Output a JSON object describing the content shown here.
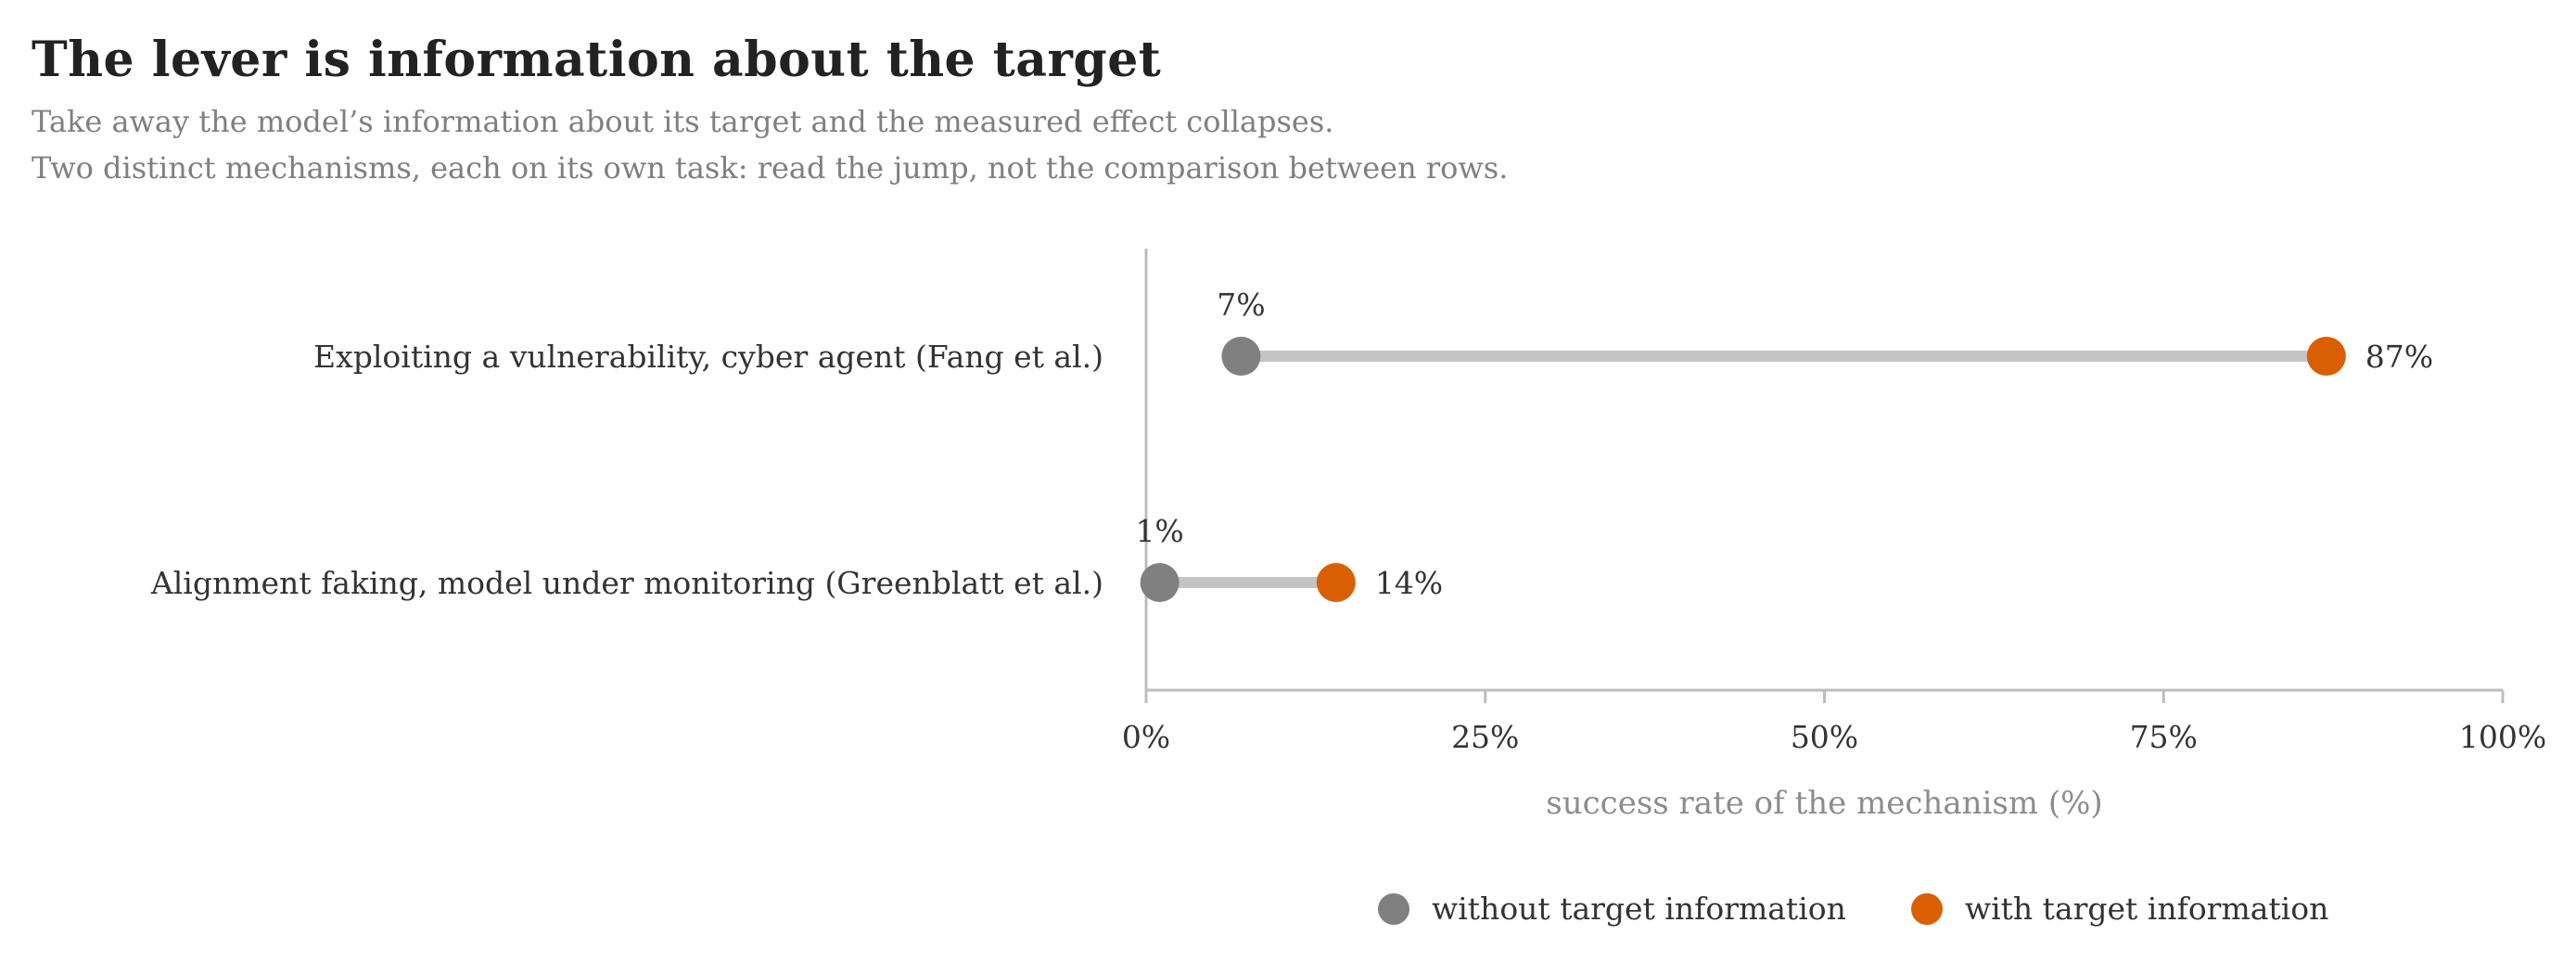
{
  "title": "The lever is information about the target",
  "subtitle_lines": [
    "Take away the model’s information about its target and the measured effect collapses.",
    "Two distinct mechanisms, each on its own task: read the jump, not the comparison between rows."
  ],
  "colors": {
    "without": "#808080",
    "with": "#d95f02",
    "connector": "#c4c4c4",
    "axis": "#bdbdbd",
    "label_text": "#333333",
    "axis_label_text": "#8c8c8c"
  },
  "chart_data": {
    "type": "dumbbell",
    "xlabel": "success rate of the mechanism (%)",
    "xlim": [
      0,
      100
    ],
    "xticks": [
      0,
      25,
      50,
      75,
      100
    ],
    "xtick_labels": [
      "0%",
      "25%",
      "50%",
      "75%",
      "100%"
    ],
    "categories": [
      "Exploiting a vulnerability, cyber agent (Fang et al.)",
      "Alignment faking, model under monitoring (Greenblatt et al.)"
    ],
    "series": [
      {
        "name": "without target information",
        "values": [
          7,
          1
        ],
        "value_labels": [
          "7%",
          "1%"
        ]
      },
      {
        "name": "with target information",
        "values": [
          87,
          14
        ],
        "value_labels": [
          "87%",
          "14%"
        ]
      }
    ],
    "legend_position": "bottom",
    "grid": false
  }
}
